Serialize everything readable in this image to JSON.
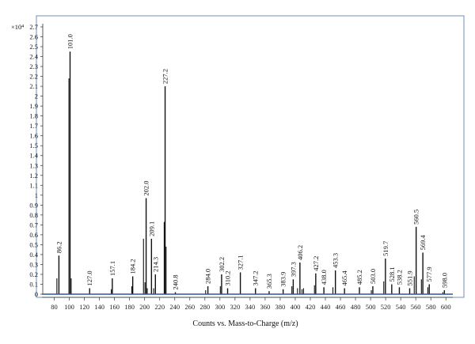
{
  "chart_data": {
    "type": "bar",
    "title": "",
    "xlabel": "Counts vs. Mass-to-Charge (m/z)",
    "ylabel": "",
    "y_multiplier_label": "×10⁴",
    "xlim": [
      70,
      605
    ],
    "ylim": [
      0,
      2.85
    ],
    "x_ticks": [
      80,
      100,
      120,
      140,
      160,
      180,
      200,
      220,
      240,
      260,
      280,
      300,
      320,
      340,
      360,
      380,
      400,
      420,
      440,
      460,
      480,
      500,
      520,
      540,
      560,
      580,
      600
    ],
    "y_ticks": [
      0,
      0.1,
      0.2,
      0.3,
      0.4,
      0.5,
      0.6,
      0.7,
      0.8,
      0.9,
      1,
      1.1,
      1.2,
      1.3,
      1.4,
      1.5,
      1.6,
      1.7,
      1.8,
      1.9,
      2,
      2.1,
      2.2,
      2.3,
      2.4,
      2.5,
      2.6,
      2.7
    ],
    "labeled_peaks": [
      {
        "mz": 86.2,
        "label": "86.2",
        "intensity": 0.39
      },
      {
        "mz": 101.0,
        "label": "101.0",
        "intensity": 2.45
      },
      {
        "mz": 127.0,
        "label": "127.0",
        "intensity": 0.06
      },
      {
        "mz": 157.1,
        "label": "157.1",
        "intensity": 0.16
      },
      {
        "mz": 184.2,
        "label": "184.2",
        "intensity": 0.18
      },
      {
        "mz": 202.0,
        "label": "202.0",
        "intensity": 0.97
      },
      {
        "mz": 209.1,
        "label": "209.1",
        "intensity": 0.56
      },
      {
        "mz": 214.3,
        "label": "214.3",
        "intensity": 0.2
      },
      {
        "mz": 227.2,
        "label": "227.2",
        "intensity": 2.1
      },
      {
        "mz": 240.8,
        "label": "240.8",
        "intensity": 0.02
      },
      {
        "mz": 284.0,
        "label": "284.0",
        "intensity": 0.08
      },
      {
        "mz": 302.2,
        "label": "302.2",
        "intensity": 0.2
      },
      {
        "mz": 310.2,
        "label": "310.2",
        "intensity": 0.06
      },
      {
        "mz": 327.1,
        "label": "327.1",
        "intensity": 0.22
      },
      {
        "mz": 347.2,
        "label": "347.2",
        "intensity": 0.06
      },
      {
        "mz": 365.3,
        "label": "365.3",
        "intensity": 0.03
      },
      {
        "mz": 383.9,
        "label": "383.9",
        "intensity": 0.05
      },
      {
        "mz": 397.3,
        "label": "397.3",
        "intensity": 0.15
      },
      {
        "mz": 406.2,
        "label": "406.2",
        "intensity": 0.32
      },
      {
        "mz": 427.2,
        "label": "427.2",
        "intensity": 0.21
      },
      {
        "mz": 438.0,
        "label": "438.0",
        "intensity": 0.07
      },
      {
        "mz": 453.3,
        "label": "453.3",
        "intensity": 0.24
      },
      {
        "mz": 465.4,
        "label": "465.4",
        "intensity": 0.06
      },
      {
        "mz": 485.2,
        "label": "485.2",
        "intensity": 0.07
      },
      {
        "mz": 503.0,
        "label": "503.0",
        "intensity": 0.08
      },
      {
        "mz": 519.7,
        "label": "519.7",
        "intensity": 0.36
      },
      {
        "mz": 528.1,
        "label": "528.1",
        "intensity": 0.1
      },
      {
        "mz": 538.2,
        "label": "538.2",
        "intensity": 0.07
      },
      {
        "mz": 551.9,
        "label": "551.9",
        "intensity": 0.06
      },
      {
        "mz": 560.5,
        "label": "560.5",
        "intensity": 0.68
      },
      {
        "mz": 569.4,
        "label": "569.4",
        "intensity": 0.42
      },
      {
        "mz": 577.9,
        "label": "577.9",
        "intensity": 0.1
      },
      {
        "mz": 598.0,
        "label": "598.0",
        "intensity": 0.04
      }
    ],
    "minor_peaks": [
      {
        "mz": 83.5,
        "intensity": 0.16
      },
      {
        "mz": 99.5,
        "intensity": 2.18
      },
      {
        "mz": 102.5,
        "intensity": 0.16
      },
      {
        "mz": 155.8,
        "intensity": 0.05
      },
      {
        "mz": 183.0,
        "intensity": 0.08
      },
      {
        "mz": 198.5,
        "intensity": 0.56
      },
      {
        "mz": 200.5,
        "intensity": 0.12
      },
      {
        "mz": 203.5,
        "intensity": 0.06
      },
      {
        "mz": 226.0,
        "intensity": 0.73
      },
      {
        "mz": 228.5,
        "intensity": 0.48
      },
      {
        "mz": 212.0,
        "intensity": 0.06
      },
      {
        "mz": 281.0,
        "intensity": 0.04
      },
      {
        "mz": 300.5,
        "intensity": 0.08
      },
      {
        "mz": 395.5,
        "intensity": 0.08
      },
      {
        "mz": 403.0,
        "intensity": 0.06
      },
      {
        "mz": 409.0,
        "intensity": 0.05
      },
      {
        "mz": 411.0,
        "intensity": 0.06
      },
      {
        "mz": 425.5,
        "intensity": 0.09
      },
      {
        "mz": 450.0,
        "intensity": 0.07
      },
      {
        "mz": 501.0,
        "intensity": 0.04
      },
      {
        "mz": 517.5,
        "intensity": 0.13
      },
      {
        "mz": 558.0,
        "intensity": 0.18
      },
      {
        "mz": 567.5,
        "intensity": 0.15
      },
      {
        "mz": 576.0,
        "intensity": 0.07
      },
      {
        "mz": 596.0,
        "intensity": 0.02
      }
    ],
    "grid": false,
    "legend": "none",
    "colors": {
      "peak": "#111111",
      "axis": "#333333",
      "frame": "#6f8fb8",
      "baseline": "#2a57a8"
    }
  }
}
